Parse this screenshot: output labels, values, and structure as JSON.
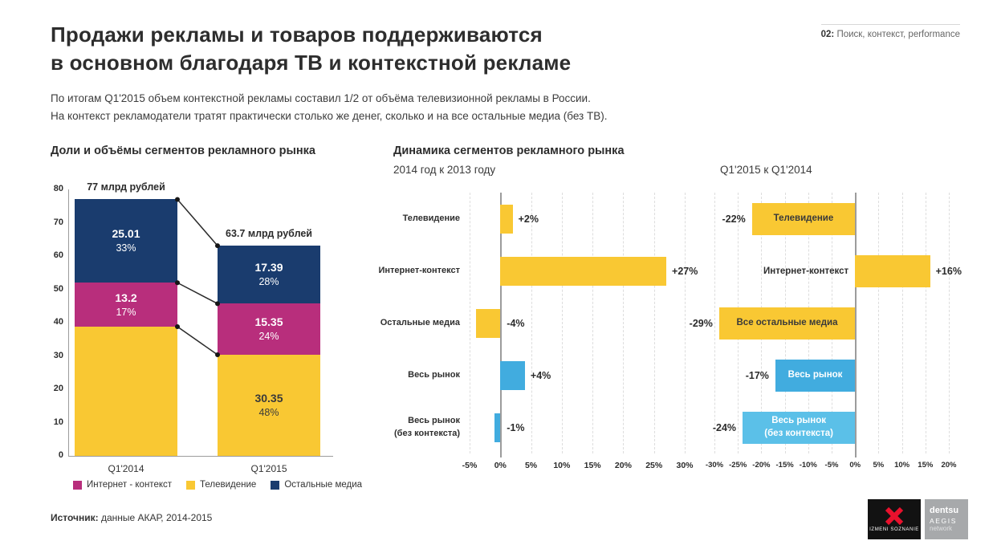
{
  "meta": {
    "tag_number": "02:",
    "tag_text": " Поиск, контекст, performance"
  },
  "header": {
    "title_line1": "Продажи рекламы и товаров поддерживаются",
    "title_line2": "в основном благодаря ТВ и контекстной рекламе",
    "subtitle_line1": "По итогам Q1'2015 объем контекстной рекламы составил 1/2 от объёма телевизионной рекламы в России.",
    "subtitle_line2": "На контекст рекламодатели тратят практически столько же денег, сколько и на все остальные медиа (без ТВ)."
  },
  "footer": {
    "source_label": "Источник:",
    "source_text": " данные АКАР, 2014-2015"
  },
  "logos": {
    "izmeni_text": "IZMENI SOZNANIE",
    "dentsu": "dentsu",
    "aegis": "AEGIS",
    "network": "network"
  },
  "colors": {
    "yellow": "#F9C833",
    "magenta": "#B82E7C",
    "navy": "#1A3C6E",
    "blue": "#41ACDF",
    "blue_light": "#5BC0E8",
    "text_dark": "#2B2B2B",
    "grid": "#DDDDDD",
    "zero_line": "#9C9C9C"
  },
  "chart_data": [
    {
      "type": "bar",
      "subtype": "stacked-vertical",
      "title": "Доли и объёмы сегментов рекламного рынка",
      "categories": [
        "Q1'2014",
        "Q1'2015"
      ],
      "totals": [
        77,
        63.7
      ],
      "totals_labels": [
        "77 млрд рублей",
        "63.7 млрд рублей"
      ],
      "ylim": [
        0,
        80
      ],
      "yticks": [
        0,
        10,
        20,
        30,
        40,
        50,
        60,
        70,
        80
      ],
      "series": [
        {
          "name": "Телевидение",
          "color": "#F9C833",
          "label_color": "#3A3A3A",
          "values": [
            38.79,
            30.35
          ],
          "value_labels": [
            "",
            "30.35"
          ],
          "pct_labels": [
            "",
            "48%"
          ]
        },
        {
          "name": "Интернет - контекст",
          "color": "#B82E7C",
          "label_color": "#FFFFFF",
          "values": [
            13.2,
            15.35
          ],
          "value_labels": [
            "13.2",
            "15.35"
          ],
          "pct_labels": [
            "17%",
            "24%"
          ]
        },
        {
          "name": "Остальные медиа",
          "color": "#1A3C6E",
          "label_color": "#FFFFFF",
          "values": [
            25.01,
            17.39
          ],
          "value_labels": [
            "25.01",
            "17.39"
          ],
          "pct_labels": [
            "33%",
            "28%"
          ]
        }
      ],
      "legend": [
        {
          "label": "Интернет - контекст",
          "color": "#B82E7C"
        },
        {
          "label": "Телевидение",
          "color": "#F9C833"
        },
        {
          "label": "Остальные медиа",
          "color": "#1A3C6E"
        }
      ]
    },
    {
      "type": "bar",
      "subtype": "horizontal",
      "title": "Динамика сегментов рекламного рынка",
      "subtitle": "2014 год  к 2013 году",
      "categories": [
        [
          "Телевидение"
        ],
        [
          "Интернет-контекст"
        ],
        [
          "Остальные медиа"
        ],
        [
          "Весь рынок"
        ],
        [
          "Весь рынок",
          "(без контекста)"
        ]
      ],
      "values": [
        2,
        27,
        -4,
        4,
        -1
      ],
      "value_labels": [
        "+2%",
        "+27%",
        "-4%",
        "+4%",
        "-1%"
      ],
      "bar_colors": [
        "#F9C833",
        "#F9C833",
        "#F9C833",
        "#41ACDF",
        "#41ACDF"
      ],
      "xlim": [
        -5,
        30
      ],
      "xticks": [
        -5,
        0,
        5,
        10,
        15,
        20,
        25,
        30
      ],
      "grid": true,
      "legend_position": "none"
    },
    {
      "type": "bar",
      "subtype": "horizontal",
      "title": "Q1'2015 к Q1'2014",
      "categories": [
        [
          "Телевидение"
        ],
        [
          "Интернет-контекст"
        ],
        [
          "Все остальные медиа"
        ],
        [
          "Весь рынок"
        ],
        [
          "Весь рынок",
          "(без контекста)"
        ]
      ],
      "values": [
        -22,
        16,
        -29,
        -17,
        -24
      ],
      "value_labels": [
        "-22%",
        "+16%",
        "-29%",
        "-17%",
        "-24%"
      ],
      "bar_colors": [
        "#F9C833",
        "#F9C833",
        "#F9C833",
        "#41ACDF",
        "#5BC0E8"
      ],
      "label_styles": [
        "inside-dark",
        "outside-dark",
        "inside-dark",
        "inside-light",
        "inside-light"
      ],
      "xlim": [
        -30,
        20
      ],
      "xticks": [
        -30,
        -25,
        -20,
        -15,
        -10,
        -5,
        0,
        5,
        10,
        15,
        20
      ],
      "grid": true,
      "legend_position": "none"
    }
  ]
}
